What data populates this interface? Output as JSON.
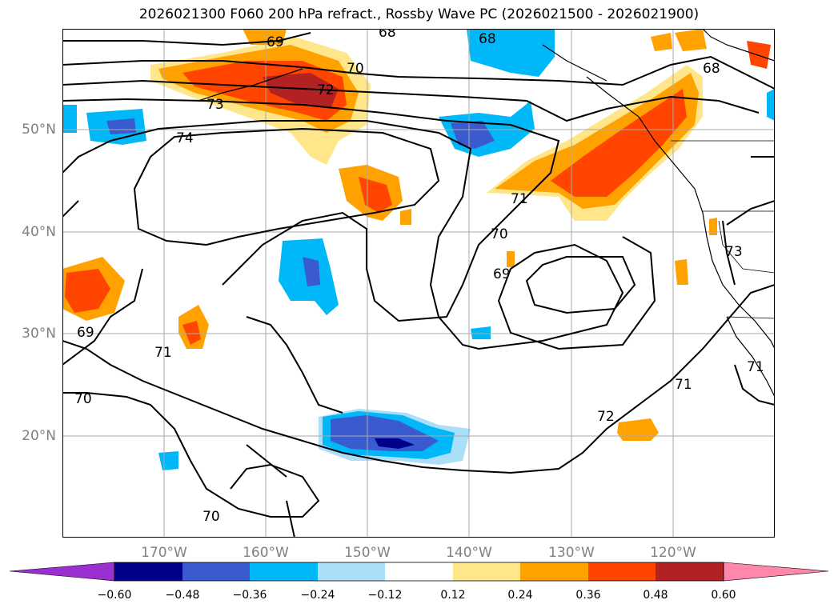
{
  "title": "2026021300 F060 200 hPa refract., Rossby Wave PC (2026021500 - 2026021900)",
  "map": {
    "lat_labels": [
      "50°N",
      "40°N",
      "30°N",
      "20°N"
    ],
    "lon_labels": [
      "170°W",
      "160°W",
      "150°W",
      "140°W",
      "130°W",
      "120°W"
    ],
    "contour_labels": [
      "68",
      "68",
      "68",
      "69",
      "69",
      "69",
      "70",
      "70",
      "70",
      "70",
      "71",
      "71",
      "71",
      "72",
      "72",
      "73",
      "73",
      "74",
      "71"
    ]
  },
  "colorbar": {
    "labels": [
      "−0.60",
      "−0.48",
      "−0.36",
      "−0.24",
      "−0.12",
      "0.12",
      "0.24",
      "0.36",
      "0.48",
      "0.60"
    ],
    "colors": [
      "#9b30d0",
      "#00008b",
      "#3a5bd0",
      "#00b8f8",
      "#aadef9",
      "#ffffff",
      "#ffe68a",
      "#ffa200",
      "#ff4500",
      "#b22222",
      "#ff88aa"
    ]
  },
  "shading_colors": {
    "neg1": "#aadef9",
    "neg2": "#00b8f8",
    "neg3": "#3a5bd0",
    "neg4": "#00008b",
    "pos1": "#ffe68a",
    "pos2": "#ffa200",
    "pos3": "#ff4500",
    "pos4": "#b22222"
  }
}
